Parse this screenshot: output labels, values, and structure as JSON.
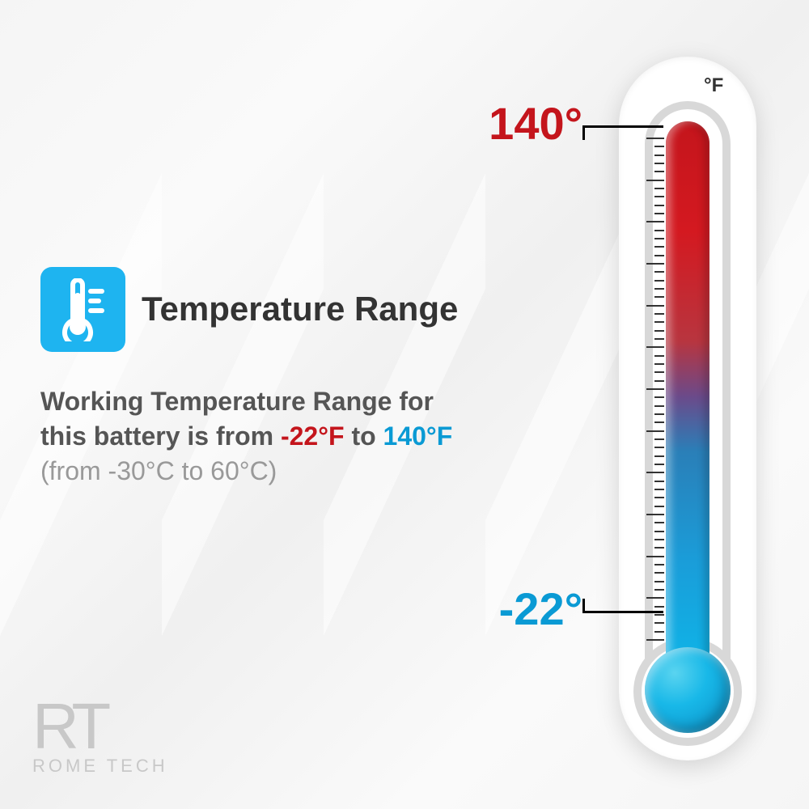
{
  "title": "Temperature Range",
  "description": {
    "prefix": "Working Temperature Range for this battery is from ",
    "low_f": "-22°F",
    "mid": " to ",
    "high_f": "140°F",
    "celsius": "(from -30°C to 60°C)"
  },
  "thermometer": {
    "unit": "°F",
    "high_label": "140°",
    "low_label": "-22°",
    "high_color": "#c4151c",
    "low_color": "#0a9ad4",
    "body_color": "#ffffff",
    "outline_color": "#d8d8d8",
    "gradient_stops": [
      "#c4151c",
      "#d41920",
      "#b8353f",
      "#6b4a8a",
      "#2a7fb8",
      "#1a9dd9",
      "#0eb5e8"
    ],
    "bulb_gradient": [
      "#5ad4f0",
      "#18b8e8",
      "#0a8cc4"
    ],
    "tick_count": 60,
    "major_every": 5
  },
  "icon": {
    "bg_color": "#1eb4f0",
    "fg_color": "#ffffff"
  },
  "logo": {
    "mark": "RT",
    "text": "ROME TECH",
    "color": "#c8c8c8"
  },
  "colors": {
    "title": "#333333",
    "body_text": "#555555",
    "muted": "#999999",
    "background": "#f5f5f5"
  }
}
